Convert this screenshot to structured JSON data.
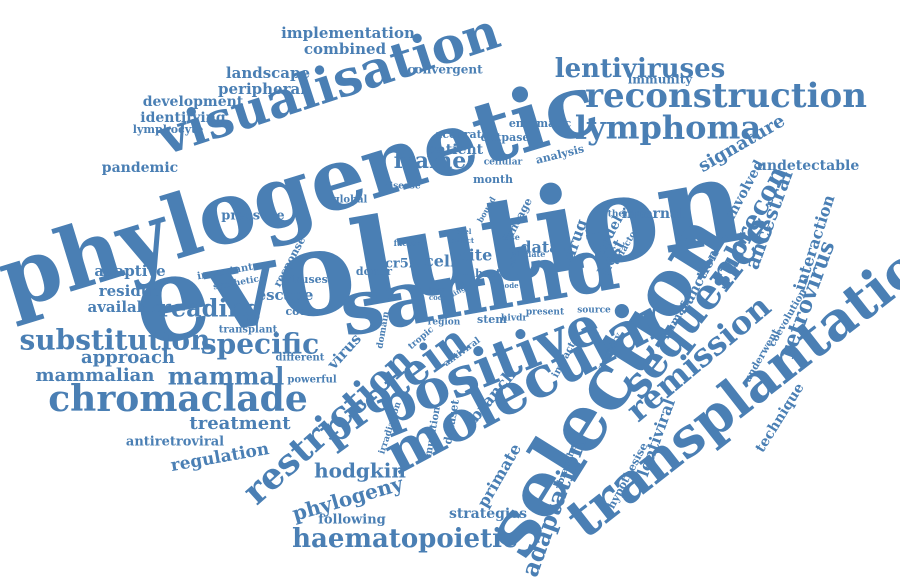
{
  "cloud": {
    "color": "#4a7fb4",
    "words": [
      {
        "text": "evolution",
        "weight": 100
      },
      {
        "text": "phylogenetic",
        "weight": 85
      },
      {
        "text": "samhd",
        "weight": 75
      },
      {
        "text": "selection",
        "weight": 70
      },
      {
        "text": "transplantation",
        "weight": 58
      },
      {
        "text": "molecular",
        "weight": 55
      },
      {
        "text": "positive",
        "weight": 55
      },
      {
        "text": "visualisation",
        "weight": 50
      },
      {
        "text": "sequence",
        "weight": 46
      },
      {
        "text": "protein",
        "weight": 42
      },
      {
        "text": "restriction",
        "weight": 40
      },
      {
        "text": "chromaclade",
        "weight": 36
      },
      {
        "text": "reconstruction",
        "weight": 34
      },
      {
        "text": "lymphoma",
        "weight": 32
      },
      {
        "text": "remission",
        "weight": 32
      },
      {
        "text": "substitution",
        "weight": 30
      },
      {
        "text": "haematopoietic",
        "weight": 28
      },
      {
        "text": "specific",
        "weight": 28
      },
      {
        "text": "lentiviruses",
        "weight": 26
      },
      {
        "text": "subrecon",
        "weight": 26
      },
      {
        "text": "adaptation",
        "weight": 24
      },
      {
        "text": "mammal",
        "weight": 24
      },
      {
        "text": "reading",
        "weight": 24
      },
      {
        "text": "retrovirus",
        "weight": 22
      },
      {
        "text": "frame",
        "weight": 22
      },
      {
        "text": "phylogeny",
        "weight": 20
      },
      {
        "text": "hodgkin",
        "weight": 20
      },
      {
        "text": "ancestral",
        "weight": 20
      },
      {
        "text": "signature",
        "weight": 18
      },
      {
        "text": "mammalian",
        "weight": 18
      },
      {
        "text": "approach",
        "weight": 18
      },
      {
        "text": "treatment",
        "weight": 18
      },
      {
        "text": "regulation",
        "weight": 18
      },
      {
        "text": "lentiviral",
        "weight": 16
      },
      {
        "text": "primate",
        "weight": 16
      },
      {
        "text": "host",
        "weight": 16
      },
      {
        "text": "data",
        "weight": 16
      },
      {
        "text": "drug",
        "weight": 16
      },
      {
        "text": "cell",
        "weight": 16
      },
      {
        "text": "site",
        "weight": 16
      },
      {
        "text": "branch",
        "weight": 16
      },
      {
        "text": "interaction",
        "weight": 16
      },
      {
        "text": "escape",
        "weight": 15
      },
      {
        "text": "virus",
        "weight": 15
      },
      {
        "text": "adaptive",
        "weight": 15
      },
      {
        "text": "residue",
        "weight": 15
      },
      {
        "text": "available",
        "weight": 15
      },
      {
        "text": "implementation",
        "weight": 15
      },
      {
        "text": "combined",
        "weight": 15
      },
      {
        "text": "landscape",
        "weight": 15
      },
      {
        "text": "peripheral",
        "weight": 15
      },
      {
        "text": "development",
        "weight": 14
      },
      {
        "text": "identifying",
        "weight": 14
      },
      {
        "text": "pandemic",
        "weight": 14
      },
      {
        "text": "patient",
        "weight": 14
      },
      {
        "text": "function",
        "weight": 14
      },
      {
        "text": "technique",
        "weight": 14
      },
      {
        "text": "involved",
        "weight": 14
      },
      {
        "text": "model",
        "weight": 14
      },
      {
        "text": "strategies",
        "weight": 14
      },
      {
        "text": "undetectable",
        "weight": 14
      },
      {
        "text": "internal",
        "weight": 14
      },
      {
        "text": "following",
        "weight": 13
      },
      {
        "text": "antiretroviral",
        "weight": 13
      },
      {
        "text": "pressure",
        "weight": 13
      },
      {
        "text": "convergent",
        "weight": 12
      },
      {
        "text": "immunity",
        "weight": 12
      },
      {
        "text": "lymphocyte",
        "weight": 11
      },
      {
        "text": "enzymatic",
        "weight": 11
      },
      {
        "text": "accurate",
        "weight": 11
      },
      {
        "text": "dntpase",
        "weight": 11
      },
      {
        "text": "analysis",
        "weight": 11
      },
      {
        "text": "cellular",
        "weight": 9
      },
      {
        "text": "disease",
        "weight": 9
      },
      {
        "text": "global",
        "weight": 10
      },
      {
        "text": "month",
        "weight": 11
      },
      {
        "text": "lineage",
        "weight": 11
      },
      {
        "text": "response",
        "weight": 11
      },
      {
        "text": "important",
        "weight": 10
      },
      {
        "text": "synthetic",
        "weight": 9
      },
      {
        "text": "viruses",
        "weight": 11
      },
      {
        "text": "codon",
        "weight": 11
      },
      {
        "text": "transplant",
        "weight": 10
      },
      {
        "text": "different",
        "weight": 10
      },
      {
        "text": "powerful",
        "weight": 10
      },
      {
        "text": "donor",
        "weight": 11
      },
      {
        "text": "ccr5Δ",
        "weight": 13
      },
      {
        "text": "hsct",
        "weight": 11
      },
      {
        "text": "factor",
        "weight": 8
      },
      {
        "text": "stem",
        "weight": 11
      },
      {
        "text": "hivdr",
        "weight": 9
      },
      {
        "text": "present",
        "weight": 9
      },
      {
        "text": "source",
        "weight": 9
      },
      {
        "text": "cofactor",
        "weight": 9
      },
      {
        "text": "coevolution",
        "weight": 10
      },
      {
        "text": "underwent",
        "weight": 10
      },
      {
        "text": "human",
        "weight": 11
      },
      {
        "text": "hypothesise",
        "weight": 11
      },
      {
        "text": "branches",
        "weight": 9
      },
      {
        "text": "impact",
        "weight": 10
      },
      {
        "text": "activity",
        "weight": 10
      },
      {
        "text": "therapy",
        "weight": 9
      },
      {
        "text": "innate",
        "weight": 8
      },
      {
        "text": "domain",
        "weight": 9
      },
      {
        "text": "tropic",
        "weight": 9
      },
      {
        "text": "region",
        "weight": 9
      },
      {
        "text": "antiviral",
        "weight": 9
      },
      {
        "text": "mutation",
        "weight": 10
      },
      {
        "text": "dataset",
        "weight": 11
      },
      {
        "text": "irradiation",
        "weight": 9
      },
      {
        "text": "bound",
        "weight": 8
      },
      {
        "text": "case",
        "weight": 8
      },
      {
        "text": "level",
        "weight": 7
      },
      {
        "text": "code",
        "weight": 7
      },
      {
        "text": "single",
        "weight": 7
      },
      {
        "text": "node",
        "weight": 7
      },
      {
        "text": "rate",
        "weight": 7
      },
      {
        "text": "novel",
        "weight": 7
      },
      {
        "text": "affect",
        "weight": 7
      }
    ]
  }
}
